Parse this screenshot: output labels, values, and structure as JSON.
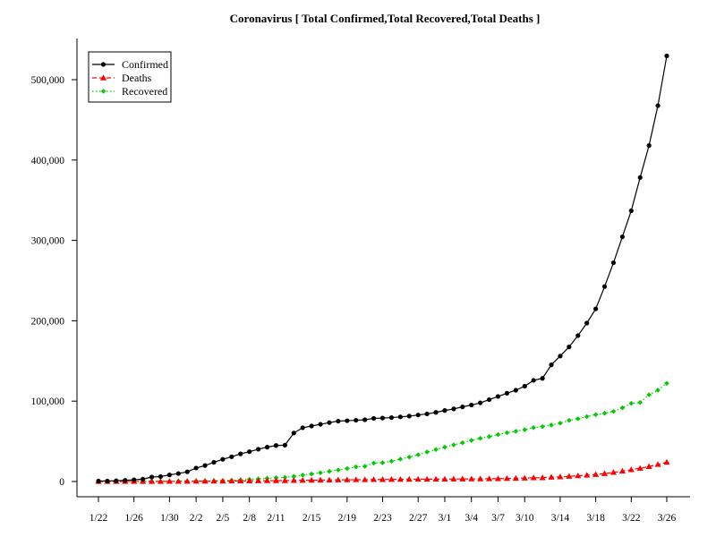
{
  "chart_data": {
    "type": "line",
    "title": "Coronavirus [ Total Confirmed,Total Recovered,Total Deaths ]",
    "xlabel": "",
    "ylabel": "",
    "ylim": [
      0,
      530000
    ],
    "yticks": [
      0,
      100000,
      200000,
      300000,
      400000,
      500000
    ],
    "ytick_labels": [
      "0",
      "100,000",
      "200,000",
      "300,000",
      "400,000",
      "500,000"
    ],
    "xtick_labels": [
      "1/22",
      "1/26",
      "1/30",
      "2/2",
      "2/5",
      "2/8",
      "2/11",
      "2/15",
      "2/19",
      "2/23",
      "2/27",
      "3/1",
      "3/4",
      "3/7",
      "3/10",
      "3/14",
      "3/18",
      "3/22",
      "3/26"
    ],
    "xtick_indices": [
      0,
      4,
      8,
      11,
      14,
      17,
      20,
      24,
      28,
      32,
      36,
      39,
      42,
      45,
      48,
      52,
      56,
      60,
      64
    ],
    "categories": [
      "1/22",
      "1/23",
      "1/24",
      "1/25",
      "1/26",
      "1/27",
      "1/28",
      "1/29",
      "1/30",
      "1/31",
      "2/1",
      "2/2",
      "2/3",
      "2/4",
      "2/5",
      "2/6",
      "2/7",
      "2/8",
      "2/9",
      "2/10",
      "2/11",
      "2/12",
      "2/13",
      "2/14",
      "2/15",
      "2/16",
      "2/17",
      "2/18",
      "2/19",
      "2/20",
      "2/21",
      "2/22",
      "2/23",
      "2/24",
      "2/25",
      "2/26",
      "2/27",
      "2/28",
      "2/29",
      "3/1",
      "3/2",
      "3/3",
      "3/4",
      "3/5",
      "3/6",
      "3/7",
      "3/8",
      "3/9",
      "3/10",
      "3/11",
      "3/12",
      "3/13",
      "3/14",
      "3/15",
      "3/16",
      "3/17",
      "3/18",
      "3/19",
      "3/20",
      "3/21",
      "3/22",
      "3/23",
      "3/24",
      "3/25",
      "3/26"
    ],
    "legend_position": "top-left",
    "series": [
      {
        "name": "Confirmed",
        "color": "#000000",
        "line": "solid",
        "marker": "circle",
        "values": [
          555,
          654,
          941,
          1434,
          2118,
          2927,
          5578,
          6166,
          8234,
          9927,
          12038,
          16787,
          19881,
          23892,
          27635,
          30794,
          34391,
          37120,
          40150,
          42762,
          44802,
          45221,
          60368,
          66885,
          69030,
          71224,
          73258,
          75136,
          75639,
          76197,
          76823,
          78579,
          78965,
          79568,
          80413,
          81395,
          82754,
          84120,
          86011,
          88369,
          90306,
          92840,
          95120,
          97886,
          101801,
          105847,
          109821,
          113590,
          118620,
          125875,
          128352,
          145205,
          156101,
          167454,
          181574,
          197102,
          214821,
          242570,
          272208,
          304507,
          336953,
          378235,
          418045,
          467653,
          529591
        ]
      },
      {
        "name": "Deaths",
        "color": "#ff0000",
        "line": "dashed",
        "marker": "triangle",
        "values": [
          17,
          18,
          26,
          42,
          56,
          82,
          131,
          133,
          171,
          213,
          259,
          362,
          426,
          492,
          564,
          634,
          719,
          806,
          906,
          1013,
          1113,
          1118,
          1371,
          1523,
          1666,
          1770,
          1868,
          2007,
          2122,
          2247,
          2251,
          2458,
          2469,
          2629,
          2708,
          2770,
          2814,
          2872,
          2941,
          2996,
          3085,
          3160,
          3254,
          3348,
          3460,
          3558,
          3802,
          3988,
          4262,
          4615,
          4720,
          5404,
          5819,
          6440,
          7126,
          7905,
          8733,
          9867,
          11299,
          12973,
          14651,
          16505,
          18625,
          21181,
          23970
        ]
      },
      {
        "name": "Recovered",
        "color": "#00cc00",
        "line": "dotted",
        "marker": "diamond",
        "values": [
          28,
          30,
          36,
          39,
          52,
          61,
          107,
          126,
          143,
          222,
          284,
          472,
          623,
          852,
          1124,
          1487,
          2011,
          2616,
          3244,
          3946,
          4683,
          5150,
          6295,
          8058,
          9395,
          10865,
          12583,
          14352,
          16121,
          18177,
          18890,
          22886,
          23394,
          25227,
          27905,
          30384,
          33277,
          36711,
          39782,
          42716,
          45602,
          48228,
          51170,
          53796,
          55865,
          58358,
          60694,
          62494,
          64404,
          67003,
          68324,
          70251,
          72624,
          76034,
          78088,
          80840,
          83207,
          84854,
          87256,
          91676,
          97243,
          98334,
          107890,
          113604,
          122150
        ]
      }
    ]
  }
}
